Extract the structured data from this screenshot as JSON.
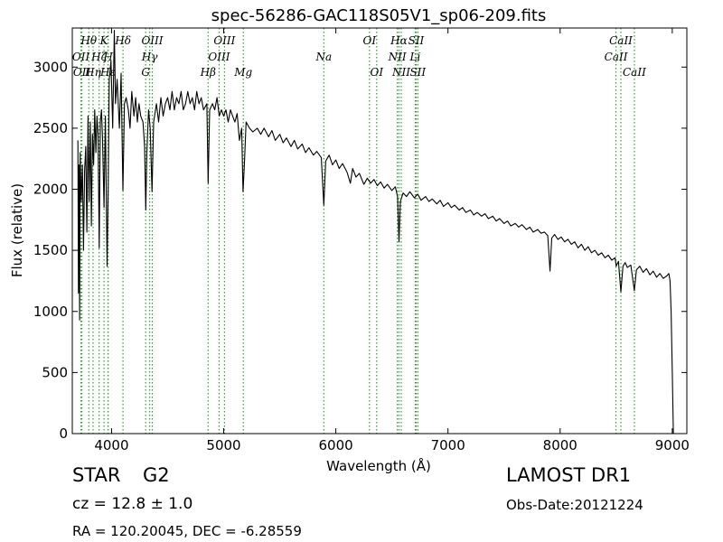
{
  "chart_data": {
    "type": "line",
    "title": "spec-56286-GAC118S05V1_sp06-209.fits",
    "xlabel": "Wavelength (Å)",
    "ylabel": "Flux (relative)",
    "xlim": [
      3650,
      9130
    ],
    "ylim": [
      0,
      3320
    ],
    "xticks": [
      4000,
      5000,
      6000,
      7000,
      8000,
      9000
    ],
    "yticks": [
      0,
      500,
      1000,
      1500,
      2000,
      2500,
      3000
    ],
    "grid": false,
    "series_color": "#000000",
    "line_color": "#2ca02c",
    "spectrum": [
      [
        3700,
        2400
      ],
      [
        3705,
        1150
      ],
      [
        3710,
        2200
      ],
      [
        3715,
        930
      ],
      [
        3720,
        2300
      ],
      [
        3730,
        1900
      ],
      [
        3740,
        2200
      ],
      [
        3750,
        1500
      ],
      [
        3760,
        2150
      ],
      [
        3770,
        2350
      ],
      [
        3780,
        1650
      ],
      [
        3790,
        2600
      ],
      [
        3800,
        1900
      ],
      [
        3810,
        2550
      ],
      [
        3820,
        1700
      ],
      [
        3830,
        2450
      ],
      [
        3840,
        2200
      ],
      [
        3850,
        2650
      ],
      [
        3860,
        2300
      ],
      [
        3870,
        2600
      ],
      [
        3880,
        2450
      ],
      [
        3890,
        1520
      ],
      [
        3900,
        2550
      ],
      [
        3910,
        2650
      ],
      [
        3920,
        2400
      ],
      [
        3933,
        1850
      ],
      [
        3945,
        2600
      ],
      [
        3960,
        1370
      ],
      [
        3970,
        2000
      ],
      [
        3980,
        2900
      ],
      [
        3995,
        3050
      ],
      [
        4010,
        2500
      ],
      [
        4025,
        3300
      ],
      [
        4035,
        2700
      ],
      [
        4050,
        2900
      ],
      [
        4070,
        2500
      ],
      [
        4085,
        2950
      ],
      [
        4101,
        1990
      ],
      [
        4115,
        2700
      ],
      [
        4130,
        2750
      ],
      [
        4150,
        2650
      ],
      [
        4165,
        2500
      ],
      [
        4180,
        2800
      ],
      [
        4200,
        2600
      ],
      [
        4215,
        2750
      ],
      [
        4230,
        2550
      ],
      [
        4245,
        2700
      ],
      [
        4260,
        2600
      ],
      [
        4280,
        2550
      ],
      [
        4295,
        2350
      ],
      [
        4305,
        1830
      ],
      [
        4315,
        2300
      ],
      [
        4330,
        2650
      ],
      [
        4345,
        2500
      ],
      [
        4361,
        1980
      ],
      [
        4375,
        2550
      ],
      [
        4400,
        2700
      ],
      [
        4420,
        2550
      ],
      [
        4440,
        2750
      ],
      [
        4460,
        2600
      ],
      [
        4480,
        2700
      ],
      [
        4500,
        2750
      ],
      [
        4520,
        2650
      ],
      [
        4540,
        2800
      ],
      [
        4560,
        2650
      ],
      [
        4580,
        2750
      ],
      [
        4600,
        2700
      ],
      [
        4620,
        2800
      ],
      [
        4640,
        2650
      ],
      [
        4660,
        2700
      ],
      [
        4680,
        2800
      ],
      [
        4700,
        2700
      ],
      [
        4720,
        2750
      ],
      [
        4740,
        2650
      ],
      [
        4760,
        2800
      ],
      [
        4780,
        2700
      ],
      [
        4800,
        2750
      ],
      [
        4820,
        2650
      ],
      [
        4850,
        2700
      ],
      [
        4861,
        2050
      ],
      [
        4875,
        2650
      ],
      [
        4900,
        2700
      ],
      [
        4920,
        2650
      ],
      [
        4940,
        2750
      ],
      [
        4960,
        2600
      ],
      [
        4980,
        2650
      ],
      [
        5000,
        2600
      ],
      [
        5020,
        2650
      ],
      [
        5040,
        2550
      ],
      [
        5060,
        2650
      ],
      [
        5080,
        2600
      ],
      [
        5100,
        2550
      ],
      [
        5120,
        2620
      ],
      [
        5140,
        2400
      ],
      [
        5160,
        2500
      ],
      [
        5172,
        1980
      ],
      [
        5184,
        2200
      ],
      [
        5200,
        2550
      ],
      [
        5230,
        2500
      ],
      [
        5260,
        2470
      ],
      [
        5300,
        2500
      ],
      [
        5330,
        2450
      ],
      [
        5360,
        2500
      ],
      [
        5400,
        2430
      ],
      [
        5430,
        2480
      ],
      [
        5460,
        2400
      ],
      [
        5500,
        2450
      ],
      [
        5530,
        2380
      ],
      [
        5560,
        2420
      ],
      [
        5600,
        2350
      ],
      [
        5630,
        2400
      ],
      [
        5660,
        2330
      ],
      [
        5700,
        2370
      ],
      [
        5730,
        2300
      ],
      [
        5760,
        2340
      ],
      [
        5800,
        2280
      ],
      [
        5830,
        2310
      ],
      [
        5870,
        2260
      ],
      [
        5893,
        1870
      ],
      [
        5910,
        2230
      ],
      [
        5940,
        2280
      ],
      [
        5970,
        2200
      ],
      [
        6000,
        2240
      ],
      [
        6030,
        2170
      ],
      [
        6060,
        2210
      ],
      [
        6100,
        2140
      ],
      [
        6130,
        2050
      ],
      [
        6150,
        2170
      ],
      [
        6180,
        2100
      ],
      [
        6210,
        2130
      ],
      [
        6250,
        2040
      ],
      [
        6280,
        2090
      ],
      [
        6310,
        2050
      ],
      [
        6340,
        2080
      ],
      [
        6370,
        2030
      ],
      [
        6400,
        2060
      ],
      [
        6430,
        2010
      ],
      [
        6460,
        2040
      ],
      [
        6500,
        1990
      ],
      [
        6530,
        2020
      ],
      [
        6550,
        1940
      ],
      [
        6563,
        1570
      ],
      [
        6575,
        1900
      ],
      [
        6600,
        1970
      ],
      [
        6630,
        1940
      ],
      [
        6660,
        1980
      ],
      [
        6700,
        1930
      ],
      [
        6730,
        1960
      ],
      [
        6760,
        1910
      ],
      [
        6800,
        1940
      ],
      [
        6830,
        1900
      ],
      [
        6860,
        1920
      ],
      [
        6900,
        1880
      ],
      [
        6930,
        1910
      ],
      [
        6960,
        1860
      ],
      [
        7000,
        1890
      ],
      [
        7030,
        1850
      ],
      [
        7060,
        1870
      ],
      [
        7100,
        1830
      ],
      [
        7130,
        1850
      ],
      [
        7160,
        1810
      ],
      [
        7200,
        1830
      ],
      [
        7230,
        1790
      ],
      [
        7260,
        1810
      ],
      [
        7300,
        1780
      ],
      [
        7330,
        1800
      ],
      [
        7360,
        1760
      ],
      [
        7400,
        1780
      ],
      [
        7430,
        1740
      ],
      [
        7460,
        1760
      ],
      [
        7500,
        1720
      ],
      [
        7530,
        1740
      ],
      [
        7560,
        1700
      ],
      [
        7600,
        1720
      ],
      [
        7630,
        1690
      ],
      [
        7660,
        1710
      ],
      [
        7700,
        1670
      ],
      [
        7730,
        1690
      ],
      [
        7760,
        1650
      ],
      [
        7800,
        1670
      ],
      [
        7830,
        1640
      ],
      [
        7860,
        1650
      ],
      [
        7890,
        1620
      ],
      [
        7910,
        1330
      ],
      [
        7925,
        1600
      ],
      [
        7950,
        1630
      ],
      [
        7980,
        1590
      ],
      [
        8010,
        1610
      ],
      [
        8040,
        1570
      ],
      [
        8070,
        1590
      ],
      [
        8100,
        1550
      ],
      [
        8130,
        1570
      ],
      [
        8160,
        1520
      ],
      [
        8190,
        1550
      ],
      [
        8220,
        1500
      ],
      [
        8250,
        1530
      ],
      [
        8280,
        1480
      ],
      [
        8310,
        1500
      ],
      [
        8340,
        1460
      ],
      [
        8370,
        1480
      ],
      [
        8400,
        1440
      ],
      [
        8430,
        1460
      ],
      [
        8460,
        1420
      ],
      [
        8490,
        1440
      ],
      [
        8500,
        1370
      ],
      [
        8520,
        1410
      ],
      [
        8542,
        1160
      ],
      [
        8560,
        1370
      ],
      [
        8580,
        1400
      ],
      [
        8600,
        1360
      ],
      [
        8630,
        1380
      ],
      [
        8662,
        1170
      ],
      [
        8680,
        1340
      ],
      [
        8710,
        1370
      ],
      [
        8740,
        1320
      ],
      [
        8770,
        1350
      ],
      [
        8800,
        1300
      ],
      [
        8830,
        1330
      ],
      [
        8860,
        1280
      ],
      [
        8890,
        1310
      ],
      [
        8920,
        1270
      ],
      [
        8950,
        1290
      ],
      [
        8970,
        1310
      ],
      [
        8980,
        1250
      ],
      [
        8990,
        1000
      ],
      [
        9000,
        500
      ],
      [
        9010,
        0
      ]
    ],
    "lines": [
      {
        "wl": 3727,
        "label": "OII",
        "row": 2
      },
      {
        "wl": 3735,
        "label": "OII",
        "row": 3
      },
      {
        "wl": 3797,
        "label": "Hθ",
        "row": 1
      },
      {
        "wl": 3835,
        "label": "Hη",
        "row": 3
      },
      {
        "wl": 3889,
        "label": "Hζ",
        "row": 2
      },
      {
        "wl": 3933,
        "label": "K",
        "row": 1
      },
      {
        "wl": 3968,
        "label": "Hε",
        "row": 3
      },
      {
        "wl": 3970,
        "label": "H",
        "row": 2
      },
      {
        "wl": 4102,
        "label": "Hδ",
        "row": 1
      },
      {
        "wl": 4304,
        "label": "G",
        "row": 3
      },
      {
        "wl": 4340,
        "label": "Hγ",
        "row": 2
      },
      {
        "wl": 4363,
        "label": "OIII",
        "row": 1
      },
      {
        "wl": 4861,
        "label": "Hβ",
        "row": 3
      },
      {
        "wl": 4959,
        "label": "OIII",
        "row": 2
      },
      {
        "wl": 5007,
        "label": "OIII",
        "row": 1
      },
      {
        "wl": 5175,
        "label": "Mg",
        "row": 3
      },
      {
        "wl": 5893,
        "label": "Na",
        "row": 2
      },
      {
        "wl": 6300,
        "label": "OI",
        "row": 1
      },
      {
        "wl": 6364,
        "label": "OI",
        "row": 3
      },
      {
        "wl": 6548,
        "label": "NII",
        "row": 2
      },
      {
        "wl": 6563,
        "label": "Hα",
        "row": 1
      },
      {
        "wl": 6583,
        "label": "NII",
        "row": 3
      },
      {
        "wl": 6708,
        "label": "Li",
        "row": 2
      },
      {
        "wl": 6716,
        "label": "SII",
        "row": 1
      },
      {
        "wl": 6731,
        "label": "SII",
        "row": 3
      },
      {
        "wl": 8498,
        "label": "CaII",
        "row": 2
      },
      {
        "wl": 8542,
        "label": "CaII",
        "row": 1
      },
      {
        "wl": 8662,
        "label": "CaII",
        "row": 3
      }
    ]
  },
  "info": {
    "class": "STAR",
    "subclass": "G2",
    "survey": "LAMOST DR1",
    "cz": "cz = 12.8 ± 1.0",
    "obs_date": "Obs-Date:20121224",
    "coords": "RA = 120.20045, DEC = -6.28559"
  }
}
